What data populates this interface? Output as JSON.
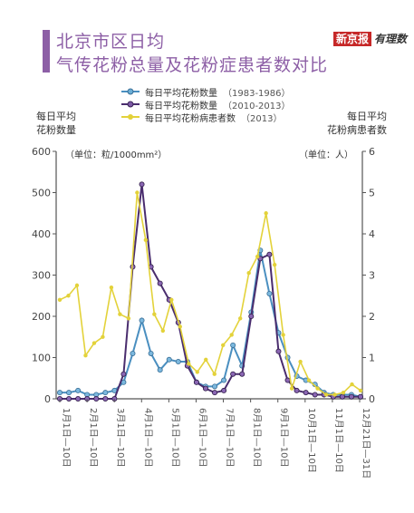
{
  "header": {
    "title_line1": "北京市区日均",
    "title_line2": "气传花粉总量及花粉症患者数对比",
    "brand_main": "新京报",
    "brand_sub": "有理数"
  },
  "chart_data": {
    "type": "line",
    "x_labels": [
      "1月1日—10日",
      "2月1日—10日",
      "3月1日—10日",
      "4月1日—10日",
      "5月1日—10日",
      "6月1日—10日",
      "7月1日—10日",
      "8月1日—10日",
      "9月1日—10日",
      "10月1日—10日",
      "11月1日—10日",
      "12月21日—31日"
    ],
    "left_axis": {
      "title_line1": "每日平均",
      "title_line2": "花粉数量",
      "unit": "（单位：粒/1000mm²）",
      "ylim": [
        0,
        600
      ],
      "ticks": [
        0,
        100,
        200,
        300,
        400,
        500,
        600
      ]
    },
    "right_axis": {
      "title_line1": "每日平均",
      "title_line2": "花粉病患者数",
      "unit": "（单位：人）",
      "ylim": [
        0,
        6
      ],
      "ticks": [
        0,
        1,
        2,
        3,
        4,
        5,
        6
      ]
    },
    "series": [
      {
        "name": "每日平均花粉数量",
        "period": "（1983-1986）",
        "axis": "left",
        "color": "#4a8fc0",
        "values": [
          15,
          15,
          20,
          10,
          10,
          15,
          20,
          40,
          110,
          190,
          110,
          70,
          95,
          90,
          90,
          40,
          30,
          30,
          45,
          130,
          80,
          210,
          360,
          255,
          160,
          100,
          55,
          45,
          35,
          15,
          10,
          10,
          10,
          5
        ]
      },
      {
        "name": "每日平均花粉数量",
        "period": "（2010-2013）",
        "axis": "left",
        "color": "#4a2d6e",
        "values": [
          0,
          0,
          0,
          0,
          0,
          0,
          0,
          60,
          320,
          520,
          320,
          280,
          240,
          185,
          80,
          40,
          25,
          15,
          20,
          60,
          60,
          200,
          340,
          350,
          115,
          45,
          20,
          15,
          10,
          10,
          5,
          5,
          5,
          5
        ]
      },
      {
        "name": "每日平均花粉病患者数",
        "period": "（2013）",
        "axis": "right",
        "color": "#e3d23a",
        "values": [
          2.4,
          2.5,
          2.75,
          1.05,
          1.35,
          1.5,
          2.7,
          2.05,
          1.95,
          5.0,
          3.85,
          2.05,
          1.65,
          2.4,
          1.75,
          0.85,
          0.65,
          0.95,
          0.6,
          1.3,
          1.55,
          1.95,
          3.05,
          3.45,
          4.5,
          3.25,
          1.55,
          0.25,
          0.9,
          0.45,
          0.25,
          0.1,
          0.1,
          0.15,
          0.35,
          0.2
        ]
      }
    ]
  }
}
